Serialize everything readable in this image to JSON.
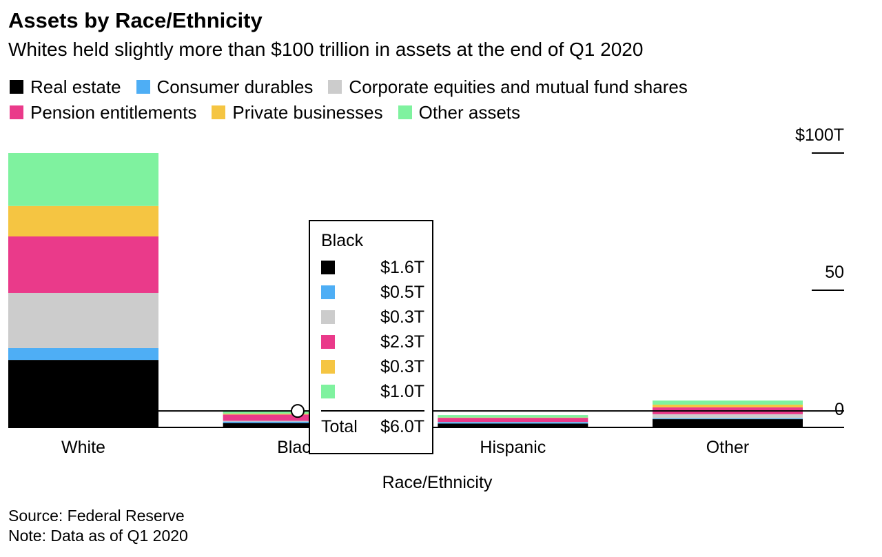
{
  "title": "Assets by Race/Ethnicity",
  "subtitle": "Whites held slightly more than $100 trillion in assets at the end of Q1 2020",
  "source": "Source: Federal Reserve",
  "note": "Note: Data as of Q1 2020",
  "chart_data": {
    "type": "bar",
    "stacked": true,
    "xlabel": "Race/Ethnicity",
    "ylabel": "",
    "ylim": [
      0,
      100
    ],
    "yticks": [
      {
        "value": 100,
        "label": "$100T"
      },
      {
        "value": 50,
        "label": "50"
      },
      {
        "value": 0,
        "label": "0"
      }
    ],
    "categories": [
      "White",
      "Black",
      "Hispanic",
      "Other"
    ],
    "legend_position": "top",
    "series": [
      {
        "name": "Real estate",
        "color": "#000000",
        "values": [
          24.6,
          1.6,
          1.4,
          3.0
        ]
      },
      {
        "name": "Consumer durables",
        "color": "#4eaef5",
        "values": [
          4.3,
          0.5,
          0.5,
          0.3
        ]
      },
      {
        "name": "Corporate equities and mutual fund shares",
        "color": "#cccccc",
        "values": [
          20.1,
          0.3,
          0.1,
          1.5
        ]
      },
      {
        "name": "Pension entitlements",
        "color": "#ea3a8a",
        "values": [
          20.6,
          2.3,
          1.5,
          2.5
        ]
      },
      {
        "name": "Private businesses",
        "color": "#f5c542",
        "values": [
          11.1,
          0.3,
          0.1,
          1.0
        ]
      },
      {
        "name": "Other assets",
        "color": "#7ff29f",
        "values": [
          19.3,
          1.0,
          0.9,
          1.5
        ]
      }
    ]
  },
  "tooltip": {
    "category": "Black",
    "values": [
      "$1.6T",
      "$0.5T",
      "$0.3T",
      "$2.3T",
      "$0.3T",
      "$1.0T"
    ],
    "total_label": "Total",
    "total": "$6.0T"
  }
}
